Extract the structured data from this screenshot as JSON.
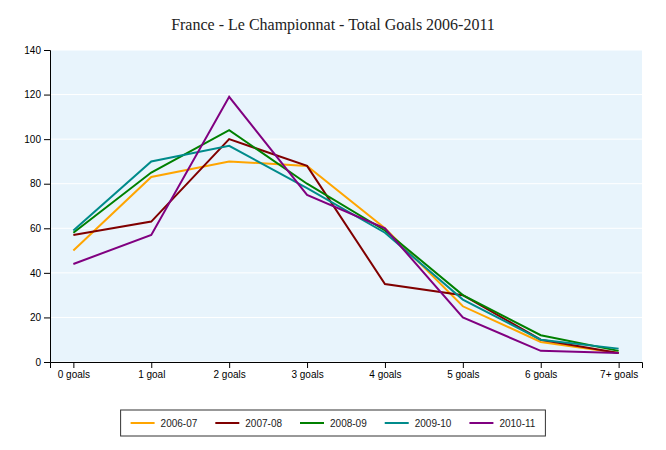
{
  "chart_data": {
    "type": "line",
    "title": "France - Le Championnat - Total Goals 2006-2011",
    "categories": [
      "0 goals",
      "1 goal",
      "2 goals",
      "3 goals",
      "4 goals",
      "5 goals",
      "6 goals",
      "7+ goals"
    ],
    "series": [
      {
        "name": "2006-07",
        "color": "#FFA500",
        "values": [
          50,
          83,
          90,
          88,
          60,
          25,
          9,
          4
        ]
      },
      {
        "name": "2007-08",
        "color": "#800000",
        "values": [
          57,
          63,
          100,
          88,
          35,
          30,
          10,
          4
        ]
      },
      {
        "name": "2008-09",
        "color": "#008000",
        "values": [
          58,
          85,
          104,
          80,
          59,
          30,
          12,
          5
        ]
      },
      {
        "name": "2009-10",
        "color": "#008B8B",
        "values": [
          59,
          90,
          97,
          78,
          58,
          28,
          10,
          6
        ]
      },
      {
        "name": "2010-11",
        "color": "#800080",
        "values": [
          44,
          57,
          119,
          75,
          60,
          20,
          5,
          4
        ]
      }
    ],
    "ylim": [
      0,
      140
    ],
    "yticks": [
      0,
      20,
      40,
      60,
      80,
      100,
      120,
      140
    ],
    "grid": true,
    "legend": "bottom"
  }
}
